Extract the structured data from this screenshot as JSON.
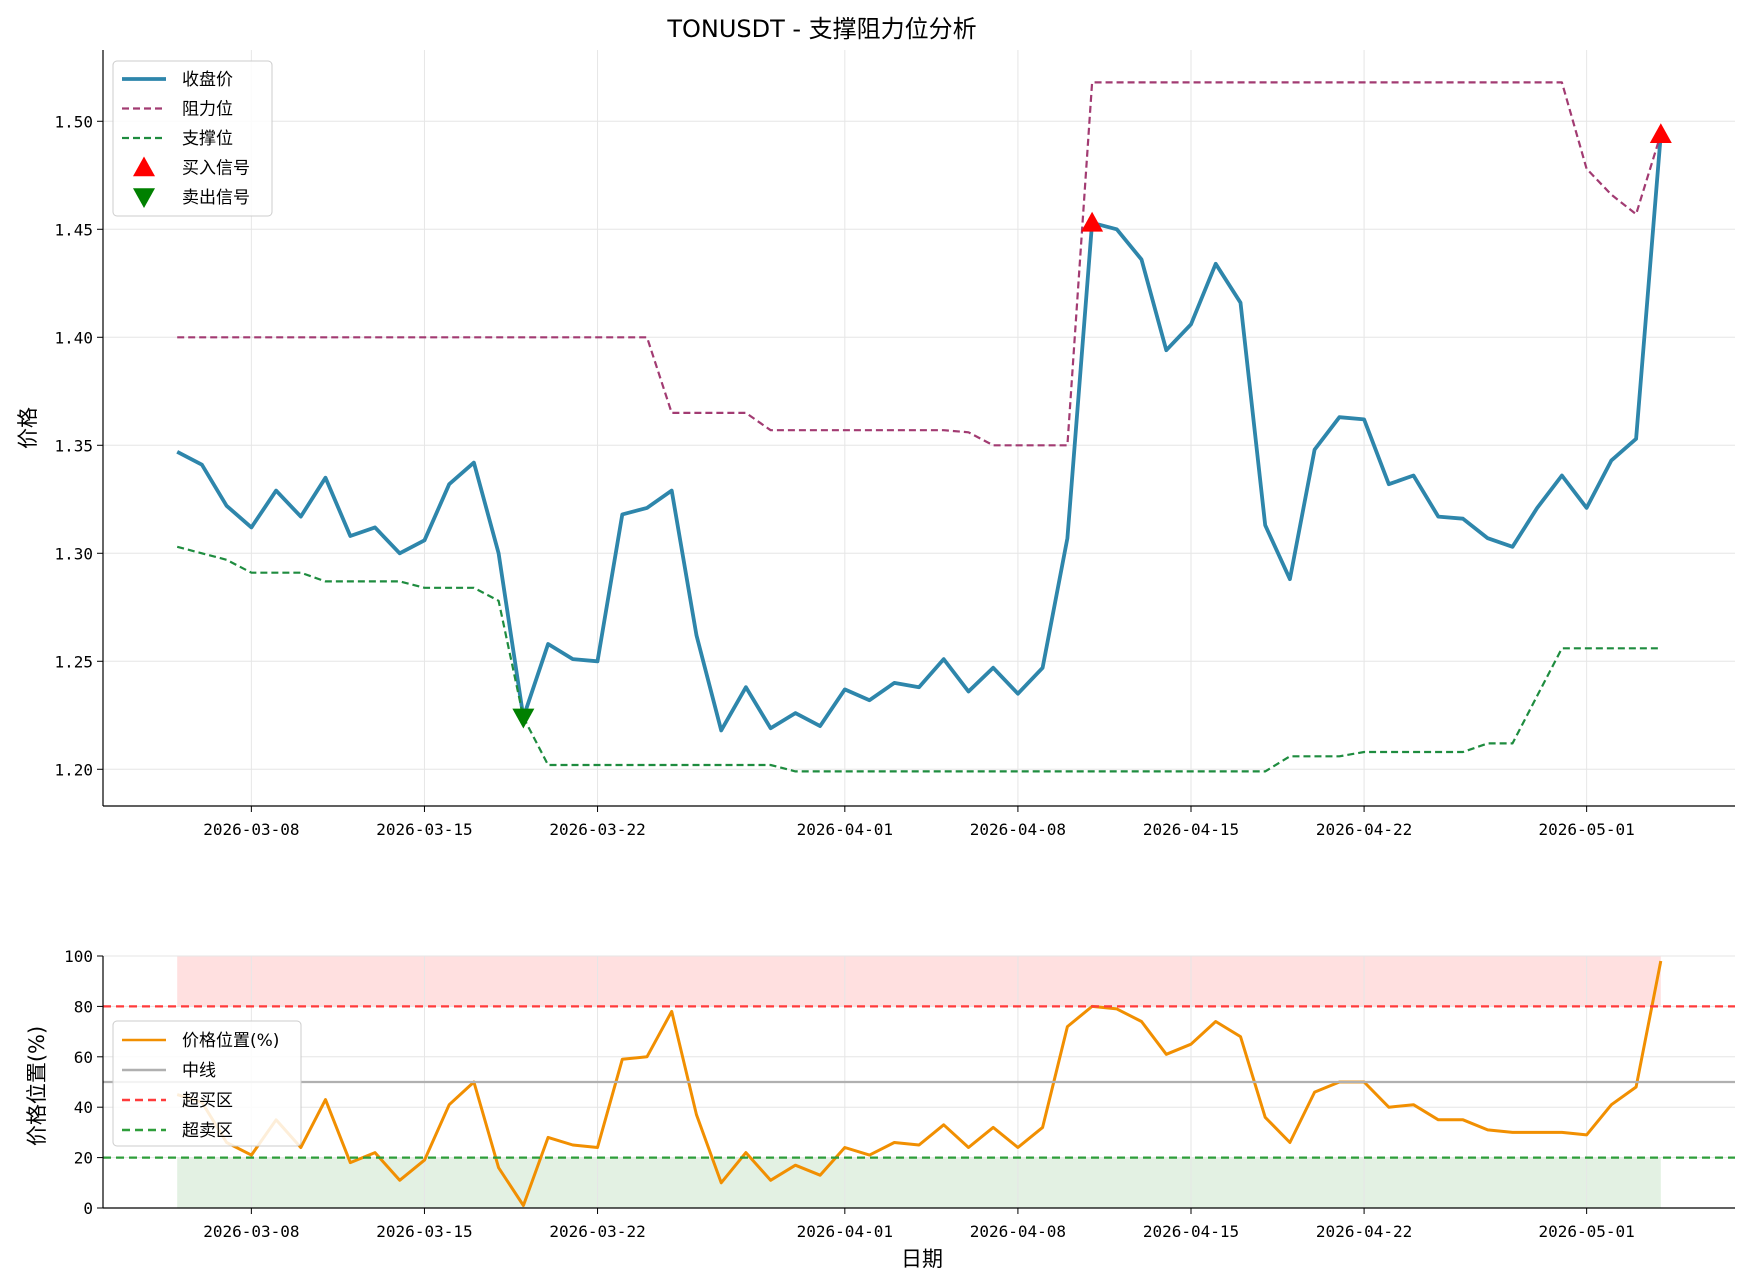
{
  "colors": {
    "close": "#2e86ab",
    "resistance": "#a23b72",
    "support": "#1e8c3f",
    "buy": "#ff0000",
    "sell": "#008000",
    "position": "#f18f01",
    "midline": "#b0b0b0",
    "overbought": "#ff3b3b",
    "oversold": "#2e9e3a"
  },
  "chart_data": [
    {
      "type": "line",
      "title": "TONUSDT - 支撑阻力位分析",
      "ylabel": "价格",
      "xlabel": "",
      "ylim": [
        1.183,
        1.533
      ],
      "xlim": [
        "2026-03-02",
        "2026-05-07"
      ],
      "x_ticks": [
        "2026-03-08",
        "2026-03-15",
        "2026-03-22",
        "2026-04-01",
        "2026-04-08",
        "2026-04-15",
        "2026-04-22",
        "2026-05-01"
      ],
      "y_ticks": [
        "1.20",
        "1.25",
        "1.30",
        "1.35",
        "1.40",
        "1.45",
        "1.50"
      ],
      "grid": true,
      "legend_position": "top-left",
      "dates": [
        "2026-03-05",
        "2026-03-06",
        "2026-03-07",
        "2026-03-08",
        "2026-03-09",
        "2026-03-10",
        "2026-03-11",
        "2026-03-12",
        "2026-03-13",
        "2026-03-14",
        "2026-03-15",
        "2026-03-16",
        "2026-03-17",
        "2026-03-18",
        "2026-03-19",
        "2026-03-20",
        "2026-03-21",
        "2026-03-22",
        "2026-03-23",
        "2026-03-24",
        "2026-03-25",
        "2026-03-26",
        "2026-03-27",
        "2026-03-28",
        "2026-03-29",
        "2026-03-30",
        "2026-03-31",
        "2026-04-01",
        "2026-04-02",
        "2026-04-03",
        "2026-04-04",
        "2026-04-05",
        "2026-04-06",
        "2026-04-07",
        "2026-04-08",
        "2026-04-09",
        "2026-04-10",
        "2026-04-11",
        "2026-04-12",
        "2026-04-13",
        "2026-04-14",
        "2026-04-15",
        "2026-04-16",
        "2026-04-17",
        "2026-04-18",
        "2026-04-19",
        "2026-04-20",
        "2026-04-21",
        "2026-04-22",
        "2026-04-23",
        "2026-04-24",
        "2026-04-25",
        "2026-04-26",
        "2026-04-27",
        "2026-04-28",
        "2026-04-29",
        "2026-04-30",
        "2026-05-01",
        "2026-05-02",
        "2026-05-03",
        "2026-05-04"
      ],
      "series": [
        {
          "name": "收盘价",
          "style": "solid",
          "values": [
            1.347,
            1.341,
            1.322,
            1.312,
            1.329,
            1.317,
            1.335,
            1.308,
            1.312,
            1.3,
            1.306,
            1.332,
            1.342,
            1.3,
            1.224,
            1.258,
            1.251,
            1.25,
            1.318,
            1.321,
            1.329,
            1.262,
            1.218,
            1.238,
            1.219,
            1.226,
            1.22,
            1.237,
            1.232,
            1.24,
            1.238,
            1.251,
            1.236,
            1.247,
            1.235,
            1.247,
            1.307,
            1.453,
            1.45,
            1.436,
            1.394,
            1.406,
            1.434,
            1.416,
            1.313,
            1.288,
            1.348,
            1.363,
            1.362,
            1.332,
            1.336,
            1.317,
            1.316,
            1.307,
            1.303,
            1.321,
            1.336,
            1.321,
            1.343,
            1.353,
            1.494
          ]
        },
        {
          "name": "阻力位",
          "style": "dashed",
          "values": [
            1.4,
            1.4,
            1.4,
            1.4,
            1.4,
            1.4,
            1.4,
            1.4,
            1.4,
            1.4,
            1.4,
            1.4,
            1.4,
            1.4,
            1.4,
            1.4,
            1.4,
            1.4,
            1.4,
            1.4,
            1.365,
            1.365,
            1.365,
            1.365,
            1.357,
            1.357,
            1.357,
            1.357,
            1.357,
            1.357,
            1.357,
            1.357,
            1.356,
            1.35,
            1.35,
            1.35,
            1.35,
            1.518,
            1.518,
            1.518,
            1.518,
            1.518,
            1.518,
            1.518,
            1.518,
            1.518,
            1.518,
            1.518,
            1.518,
            1.518,
            1.518,
            1.518,
            1.518,
            1.518,
            1.518,
            1.518,
            1.518,
            1.478,
            1.466,
            1.457,
            1.494
          ]
        },
        {
          "name": "支撑位",
          "style": "dashed",
          "values": [
            1.303,
            1.3,
            1.297,
            1.291,
            1.291,
            1.291,
            1.287,
            1.287,
            1.287,
            1.287,
            1.284,
            1.284,
            1.284,
            1.278,
            1.224,
            1.202,
            1.202,
            1.202,
            1.202,
            1.202,
            1.202,
            1.202,
            1.202,
            1.202,
            1.202,
            1.199,
            1.199,
            1.199,
            1.199,
            1.199,
            1.199,
            1.199,
            1.199,
            1.199,
            1.199,
            1.199,
            1.199,
            1.199,
            1.199,
            1.199,
            1.199,
            1.199,
            1.199,
            1.199,
            1.199,
            1.206,
            1.206,
            1.206,
            1.208,
            1.208,
            1.208,
            1.208,
            1.208,
            1.212,
            1.212,
            1.234,
            1.256,
            1.256,
            1.256,
            1.256,
            1.256
          ]
        }
      ],
      "markers": [
        {
          "name": "买入信号",
          "shape": "triangle-up",
          "points": [
            {
              "x": "2026-04-11",
              "y": 1.453
            },
            {
              "x": "2026-05-04",
              "y": 1.494
            }
          ]
        },
        {
          "name": "卖出信号",
          "shape": "triangle-down",
          "points": [
            {
              "x": "2026-03-19",
              "y": 1.224
            }
          ]
        }
      ]
    },
    {
      "type": "line",
      "title": "",
      "ylabel": "价格位置(%)",
      "xlabel": "日期",
      "ylim": [
        0,
        100
      ],
      "xlim": [
        "2026-03-02",
        "2026-05-07"
      ],
      "x_ticks": [
        "2026-03-08",
        "2026-03-15",
        "2026-03-22",
        "2026-04-01",
        "2026-04-08",
        "2026-04-15",
        "2026-04-22",
        "2026-05-01"
      ],
      "y_ticks": [
        "0",
        "20",
        "40",
        "60",
        "80",
        "100"
      ],
      "grid": true,
      "legend_position": "middle-left",
      "dates_from": 0,
      "series": [
        {
          "name": "价格位置(%)",
          "style": "solid",
          "values": [
            45,
            42,
            26,
            21,
            35,
            24,
            43,
            18,
            22,
            11,
            19,
            41,
            50,
            16,
            1,
            28,
            25,
            24,
            59,
            60,
            78,
            37,
            10,
            22,
            11,
            17,
            13,
            24,
            21,
            26,
            25,
            33,
            24,
            32,
            24,
            32,
            72,
            80,
            79,
            74,
            61,
            65,
            74,
            68,
            36,
            26,
            46,
            50,
            50,
            40,
            41,
            35,
            35,
            31,
            30,
            30,
            30,
            29,
            41,
            48,
            98
          ]
        },
        {
          "name": "中线",
          "style": "solid",
          "constant": 50
        },
        {
          "name": "超买区",
          "style": "dashed",
          "constant": 80
        },
        {
          "name": "超卖区",
          "style": "dashed",
          "constant": 20
        }
      ],
      "bands": [
        {
          "zone": "overbought",
          "from": 80,
          "to": 100,
          "color": "#ffe0e0"
        },
        {
          "zone": "oversold",
          "from": 0,
          "to": 20,
          "color": "#e3f1e3"
        }
      ]
    }
  ]
}
